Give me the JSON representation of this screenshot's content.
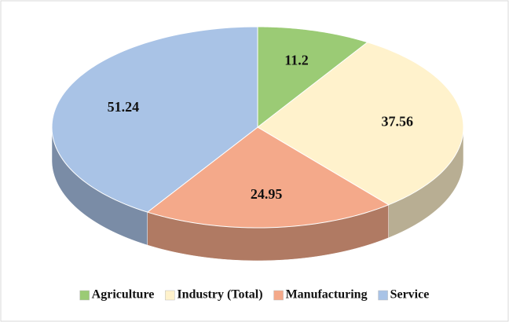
{
  "chart_data": {
    "type": "pie3d",
    "categories": [
      "Agriculture",
      "Industry (Total)",
      "Manufacturing",
      "Service"
    ],
    "values": [
      11.2,
      37.56,
      24.95,
      51.24
    ],
    "colors": [
      "#9bcb75",
      "#fff2cc",
      "#f4a98a",
      "#a9c3e6"
    ],
    "legend": "bottom"
  }
}
